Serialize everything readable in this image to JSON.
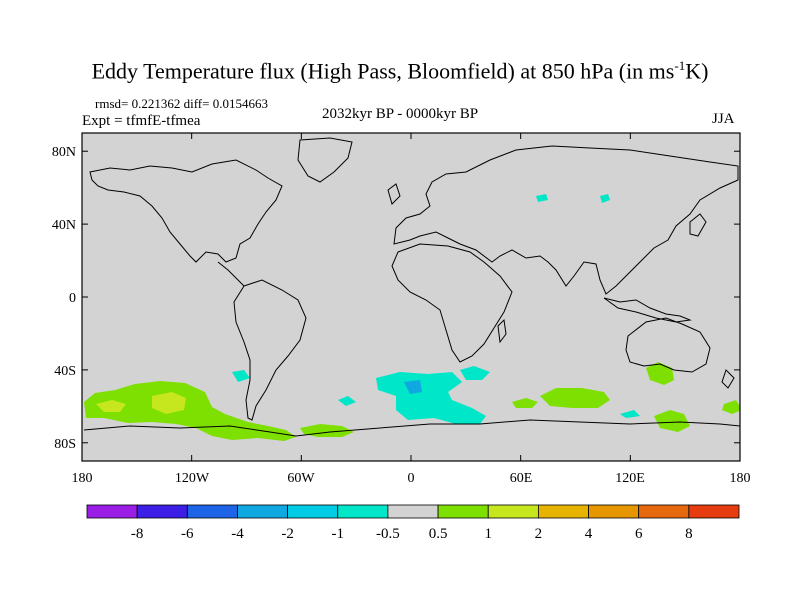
{
  "title": {
    "main": "Eddy Temperature flux (High Pass, Bloomfield) at 850 hPa (in ms",
    "sup": "-1",
    "end": "K)"
  },
  "stats_line": "rmsd= 0.221362 diff= 0.0154663",
  "expt_line": "Expt = tfmfE-tfmea",
  "period_line": "2032kyr BP - 0000kyr BP",
  "season": "JJA",
  "map": {
    "lon_range": [
      -180,
      180
    ],
    "lat_range": [
      -90,
      90
    ],
    "x_tick_labels": [
      "180",
      "120W",
      "60W",
      "0",
      "60E",
      "120E",
      "180"
    ],
    "y_tick_labels": [
      "80N",
      "40N",
      "0",
      "40S",
      "80S"
    ],
    "background_color": "#d3d3d3"
  },
  "colorbar": {
    "colors": [
      "#9a1ee6",
      "#3c1ee6",
      "#1e64e6",
      "#10a8e0",
      "#00cce6",
      "#00e6c8",
      "#d3d3d3",
      "#7ee000",
      "#c6e61e",
      "#e6b400",
      "#e69600",
      "#e6690f",
      "#e63c0f"
    ],
    "labels": [
      "-8",
      "-6",
      "-4",
      "-2",
      "-1",
      "-0.5",
      "0.5",
      "1",
      "2",
      "4",
      "6",
      "8"
    ]
  }
}
